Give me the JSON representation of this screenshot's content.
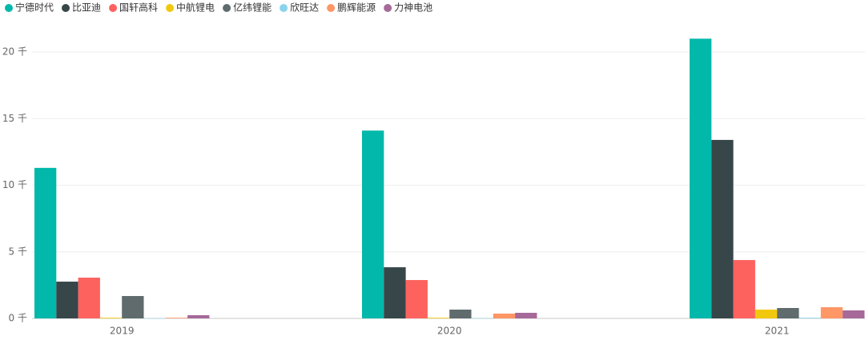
{
  "chart_data": {
    "type": "bar",
    "categories": [
      "2019",
      "2020",
      "2021"
    ],
    "series": [
      {
        "name": "宁德时代",
        "color": "#01B8AA",
        "values": [
          11.3,
          14.1,
          21.0
        ]
      },
      {
        "name": "比亚迪",
        "color": "#374649",
        "values": [
          2.76,
          3.84,
          13.4
        ]
      },
      {
        "name": "国轩高科",
        "color": "#FD625E",
        "values": [
          3.06,
          2.88,
          4.38
        ]
      },
      {
        "name": "中航锂电",
        "color": "#F2C80F",
        "values": [
          0.05,
          0.05,
          0.66
        ]
      },
      {
        "name": "亿纬锂能",
        "color": "#5F6B6D",
        "values": [
          1.68,
          0.66,
          0.78
        ]
      },
      {
        "name": "欣旺达",
        "color": "#8AD4EB",
        "values": [
          0.01,
          0.02,
          0.05
        ]
      },
      {
        "name": "鹏辉能源",
        "color": "#FE9666",
        "values": [
          0.05,
          0.36,
          0.84
        ]
      },
      {
        "name": "力神电池",
        "color": "#A66999",
        "values": [
          0.24,
          0.42,
          0.6
        ]
      }
    ],
    "ylim": [
      0,
      20.3
    ],
    "yticks": [
      {
        "value": 0,
        "label": "0 千"
      },
      {
        "value": 5,
        "label": "5 千"
      },
      {
        "value": 10,
        "label": "10 千"
      },
      {
        "value": 15,
        "label": "15 千"
      },
      {
        "value": 20,
        "label": "20 千"
      }
    ],
    "grid": true
  }
}
